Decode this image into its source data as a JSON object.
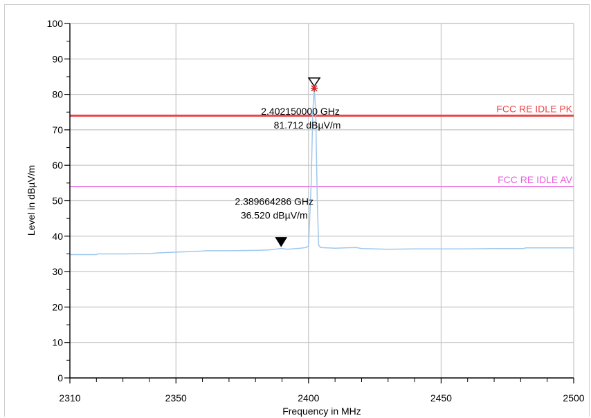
{
  "chart_data": {
    "type": "line",
    "xlabel": "Frequency in MHz",
    "ylabel": "Level in dBµV/m",
    "xlim": [
      2310,
      2500
    ],
    "ylim": [
      0,
      100
    ],
    "x_major_ticks": [
      2310,
      2350,
      2400,
      2450,
      2500
    ],
    "x_minor_ticks": [
      2320,
      2330,
      2340,
      2360,
      2370,
      2380,
      2390,
      2410,
      2420,
      2430,
      2440,
      2460,
      2470,
      2480,
      2490
    ],
    "y_ticks": [
      0,
      10,
      20,
      30,
      40,
      50,
      60,
      70,
      80,
      90,
      100
    ],
    "grid": true,
    "colors": {
      "trace": "#9ec8ee",
      "limit_pk": "#e8474a",
      "limit_av": "#e95de0",
      "grid": "#c4c4c4",
      "marker_peak": "#cc2222"
    },
    "series": [
      {
        "color": "#9ec8ee",
        "points": [
          [
            2310,
            34.8
          ],
          [
            2320,
            34.8
          ],
          [
            2320.5,
            35.0
          ],
          [
            2330,
            35.0
          ],
          [
            2340,
            35.1
          ],
          [
            2344,
            35.3
          ],
          [
            2350,
            35.5
          ],
          [
            2354,
            35.6
          ],
          [
            2360,
            35.8
          ],
          [
            2361,
            35.9
          ],
          [
            2370,
            35.9
          ],
          [
            2380,
            36.0
          ],
          [
            2385,
            36.1
          ],
          [
            2389.66,
            36.52
          ],
          [
            2392,
            36.3
          ],
          [
            2397,
            36.6
          ],
          [
            2399,
            36.8
          ],
          [
            2400,
            37.2
          ],
          [
            2401,
            55.0
          ],
          [
            2401.6,
            75.0
          ],
          [
            2402.15,
            81.712
          ],
          [
            2402.7,
            75.0
          ],
          [
            2403.3,
            50.0
          ],
          [
            2403.8,
            37.5
          ],
          [
            2404.5,
            36.8
          ],
          [
            2410,
            36.6
          ],
          [
            2418,
            36.8
          ],
          [
            2420,
            36.5
          ],
          [
            2430,
            36.3
          ],
          [
            2440,
            36.4
          ],
          [
            2450,
            36.4
          ],
          [
            2460,
            36.4
          ],
          [
            2470,
            36.5
          ],
          [
            2481,
            36.5
          ],
          [
            2482,
            36.7
          ],
          [
            2490,
            36.7
          ],
          [
            2500,
            36.7
          ]
        ]
      }
    ],
    "limit_lines": [
      {
        "name": "FCC RE IDLE PK",
        "value": 74,
        "color": "#e8474a"
      },
      {
        "name": "FCC RE IDLE AV",
        "value": 54,
        "color": "#e95de0"
      }
    ],
    "markers": [
      {
        "freq_line": "2.402150000 GHz",
        "level_line": "81.712 dBµV/m",
        "x": 2402.15,
        "y": 81.712,
        "kind": "peak"
      },
      {
        "freq_line": "2.389664286 GHz",
        "level_line": "36.520 dBµV/m",
        "x": 2389.66,
        "y": 36.52,
        "kind": "filled"
      }
    ]
  }
}
